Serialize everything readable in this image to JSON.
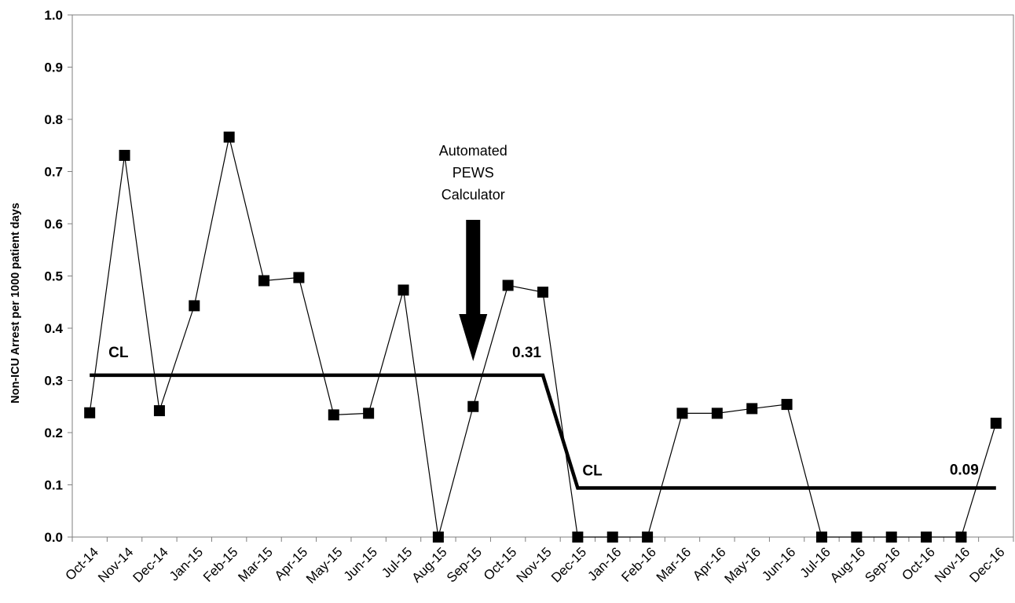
{
  "chart_data": {
    "type": "line",
    "ylabel": "Non-ICU Arrest per 1000 patient days",
    "ylim": [
      0,
      1.0
    ],
    "yticks": [
      "0.0",
      "0.1",
      "0.2",
      "0.3",
      "0.4",
      "0.5",
      "0.6",
      "0.7",
      "0.8",
      "0.9",
      "1.0"
    ],
    "categories": [
      "Oct-14",
      "Nov-14",
      "Dec-14",
      "Jan-15",
      "Feb-15",
      "Mar-15",
      "Apr-15",
      "May-15",
      "Jun-15",
      "Jul-15",
      "Aug-15",
      "Sep-15",
      "Oct-15",
      "Nov-15",
      "Dec-15",
      "Jan-16",
      "Feb-16",
      "Mar-16",
      "Apr-16",
      "May-16",
      "Jun-16",
      "Jul-16",
      "Aug-16",
      "Sep-16",
      "Oct-16",
      "Nov-16",
      "Dec-16"
    ],
    "series": [
      {
        "values": [
          0.238,
          0.731,
          0.242,
          0.443,
          0.766,
          0.491,
          0.497,
          0.234,
          0.237,
          0.473,
          0.0,
          0.25,
          0.482,
          0.469,
          0.0,
          0.0,
          0.0,
          0.237,
          0.237,
          0.246,
          0.254,
          0.0,
          0.0,
          0.0,
          0.0,
          0.0,
          0.218
        ],
        "color": "#000000"
      }
    ],
    "center_lines": [
      {
        "label": "CL",
        "value_label": "0.31",
        "value": 0.31,
        "from": "Oct-14",
        "to": "Nov-15"
      },
      {
        "label": "CL",
        "value_label": "0.09",
        "value": 0.094,
        "from": "Dec-15",
        "to": "Dec-16"
      }
    ],
    "annotation": {
      "lines": [
        "Automated",
        "PEWS",
        "Calculator"
      ],
      "at": "Sep-15"
    },
    "grid": false
  }
}
